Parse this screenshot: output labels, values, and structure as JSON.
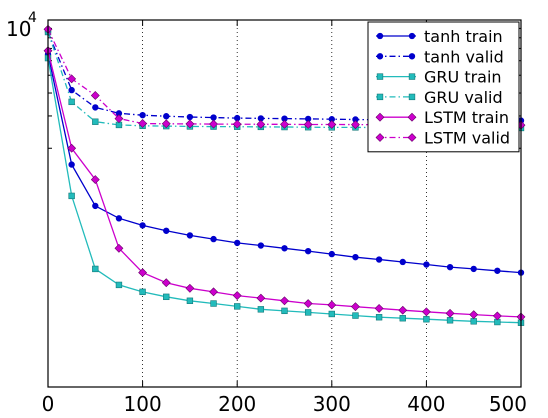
{
  "chart_data": {
    "type": "line",
    "title": "",
    "xlabel": "",
    "ylabel": "",
    "xlim": [
      0,
      500
    ],
    "ylim": [
      0,
      100
    ],
    "y_scale": "log",
    "y_axis_top_label": {
      "base": "10",
      "exponent": "4"
    },
    "x_ticks": [
      0,
      100,
      200,
      300,
      400,
      500
    ],
    "x_tick_labels": [
      "0",
      "100",
      "200",
      "300",
      "400",
      "500"
    ],
    "grid": "vertical dotted",
    "legend_position": "top-right",
    "series": [
      {
        "name": "tanh train",
        "color": "#0000cc",
        "marker": "circle",
        "linestyle": "solid",
        "x": [
          0,
          25,
          50,
          75,
          100,
          125,
          150,
          175,
          200,
          225,
          250,
          275,
          300,
          325,
          350,
          375,
          400,
          425,
          450,
          475,
          500
        ],
        "y": [
          65,
          16.3,
          9.7,
          8.3,
          7.6,
          7.1,
          6.7,
          6.4,
          6.1,
          5.9,
          5.7,
          5.5,
          5.3,
          5.1,
          4.95,
          4.8,
          4.65,
          4.5,
          4.4,
          4.3,
          4.2
        ]
      },
      {
        "name": "tanh valid",
        "color": "#0000cc",
        "marker": "circle",
        "linestyle": "dashdot",
        "x": [
          0,
          25,
          50,
          75,
          100,
          125,
          150,
          175,
          200,
          225,
          250,
          275,
          300,
          325,
          350,
          375,
          400,
          425,
          450,
          475,
          500
        ],
        "y": [
          86,
          41.5,
          33.4,
          31.0,
          30.3,
          29.9,
          29.6,
          29.4,
          29.2,
          29.1,
          29.0,
          28.9,
          28.8,
          28.7,
          28.6,
          28.55,
          28.5,
          28.45,
          28.4,
          28.35,
          28.3
        ]
      },
      {
        "name": "GRU train",
        "color": "#22bbbb",
        "marker": "square",
        "linestyle": "solid",
        "x": [
          0,
          25,
          50,
          75,
          100,
          125,
          150,
          175,
          200,
          225,
          250,
          275,
          300,
          325,
          350,
          375,
          400,
          425,
          450,
          475,
          500
        ],
        "y": [
          62,
          11.0,
          4.4,
          3.6,
          3.3,
          3.1,
          2.95,
          2.85,
          2.75,
          2.65,
          2.6,
          2.55,
          2.5,
          2.45,
          2.4,
          2.37,
          2.34,
          2.31,
          2.28,
          2.26,
          2.24
        ]
      },
      {
        "name": "GRU valid",
        "color": "#22bbbb",
        "marker": "square",
        "linestyle": "dashdot",
        "x": [
          0,
          25,
          50,
          75,
          100,
          125,
          150,
          175,
          200,
          225,
          250,
          275,
          300,
          325,
          350,
          375,
          400,
          425,
          450,
          475,
          500
        ],
        "y": [
          86,
          35.8,
          27.9,
          26.8,
          26.5,
          26.4,
          26.3,
          26.25,
          26.2,
          26.15,
          26.1,
          26.05,
          26.0,
          26.0,
          25.95,
          25.95,
          25.9,
          25.9,
          25.85,
          25.85,
          25.8
        ]
      },
      {
        "name": "LSTM train",
        "color": "#cc00cc",
        "marker": "diamond",
        "linestyle": "solid",
        "x": [
          0,
          25,
          50,
          75,
          100,
          125,
          150,
          175,
          200,
          225,
          250,
          275,
          300,
          325,
          350,
          375,
          400,
          425,
          450,
          475,
          500
        ],
        "y": [
          68,
          20.0,
          13.5,
          5.7,
          4.2,
          3.7,
          3.45,
          3.3,
          3.15,
          3.05,
          2.95,
          2.85,
          2.8,
          2.74,
          2.68,
          2.62,
          2.57,
          2.52,
          2.48,
          2.44,
          2.41
        ]
      },
      {
        "name": "LSTM valid",
        "color": "#cc00cc",
        "marker": "diamond",
        "linestyle": "dashdot",
        "x": [
          0,
          25,
          50,
          75,
          100,
          125,
          150,
          175,
          200,
          225,
          250,
          275,
          300,
          325,
          350,
          375,
          400,
          425,
          450,
          475,
          500
        ],
        "y": [
          89,
          47.8,
          38.8,
          29.0,
          27.3,
          27.2,
          27.15,
          27.1,
          27.05,
          27.0,
          27.0,
          26.95,
          26.95,
          26.9,
          26.9,
          26.85,
          26.85,
          26.8,
          26.8,
          26.8,
          26.75
        ]
      }
    ]
  }
}
